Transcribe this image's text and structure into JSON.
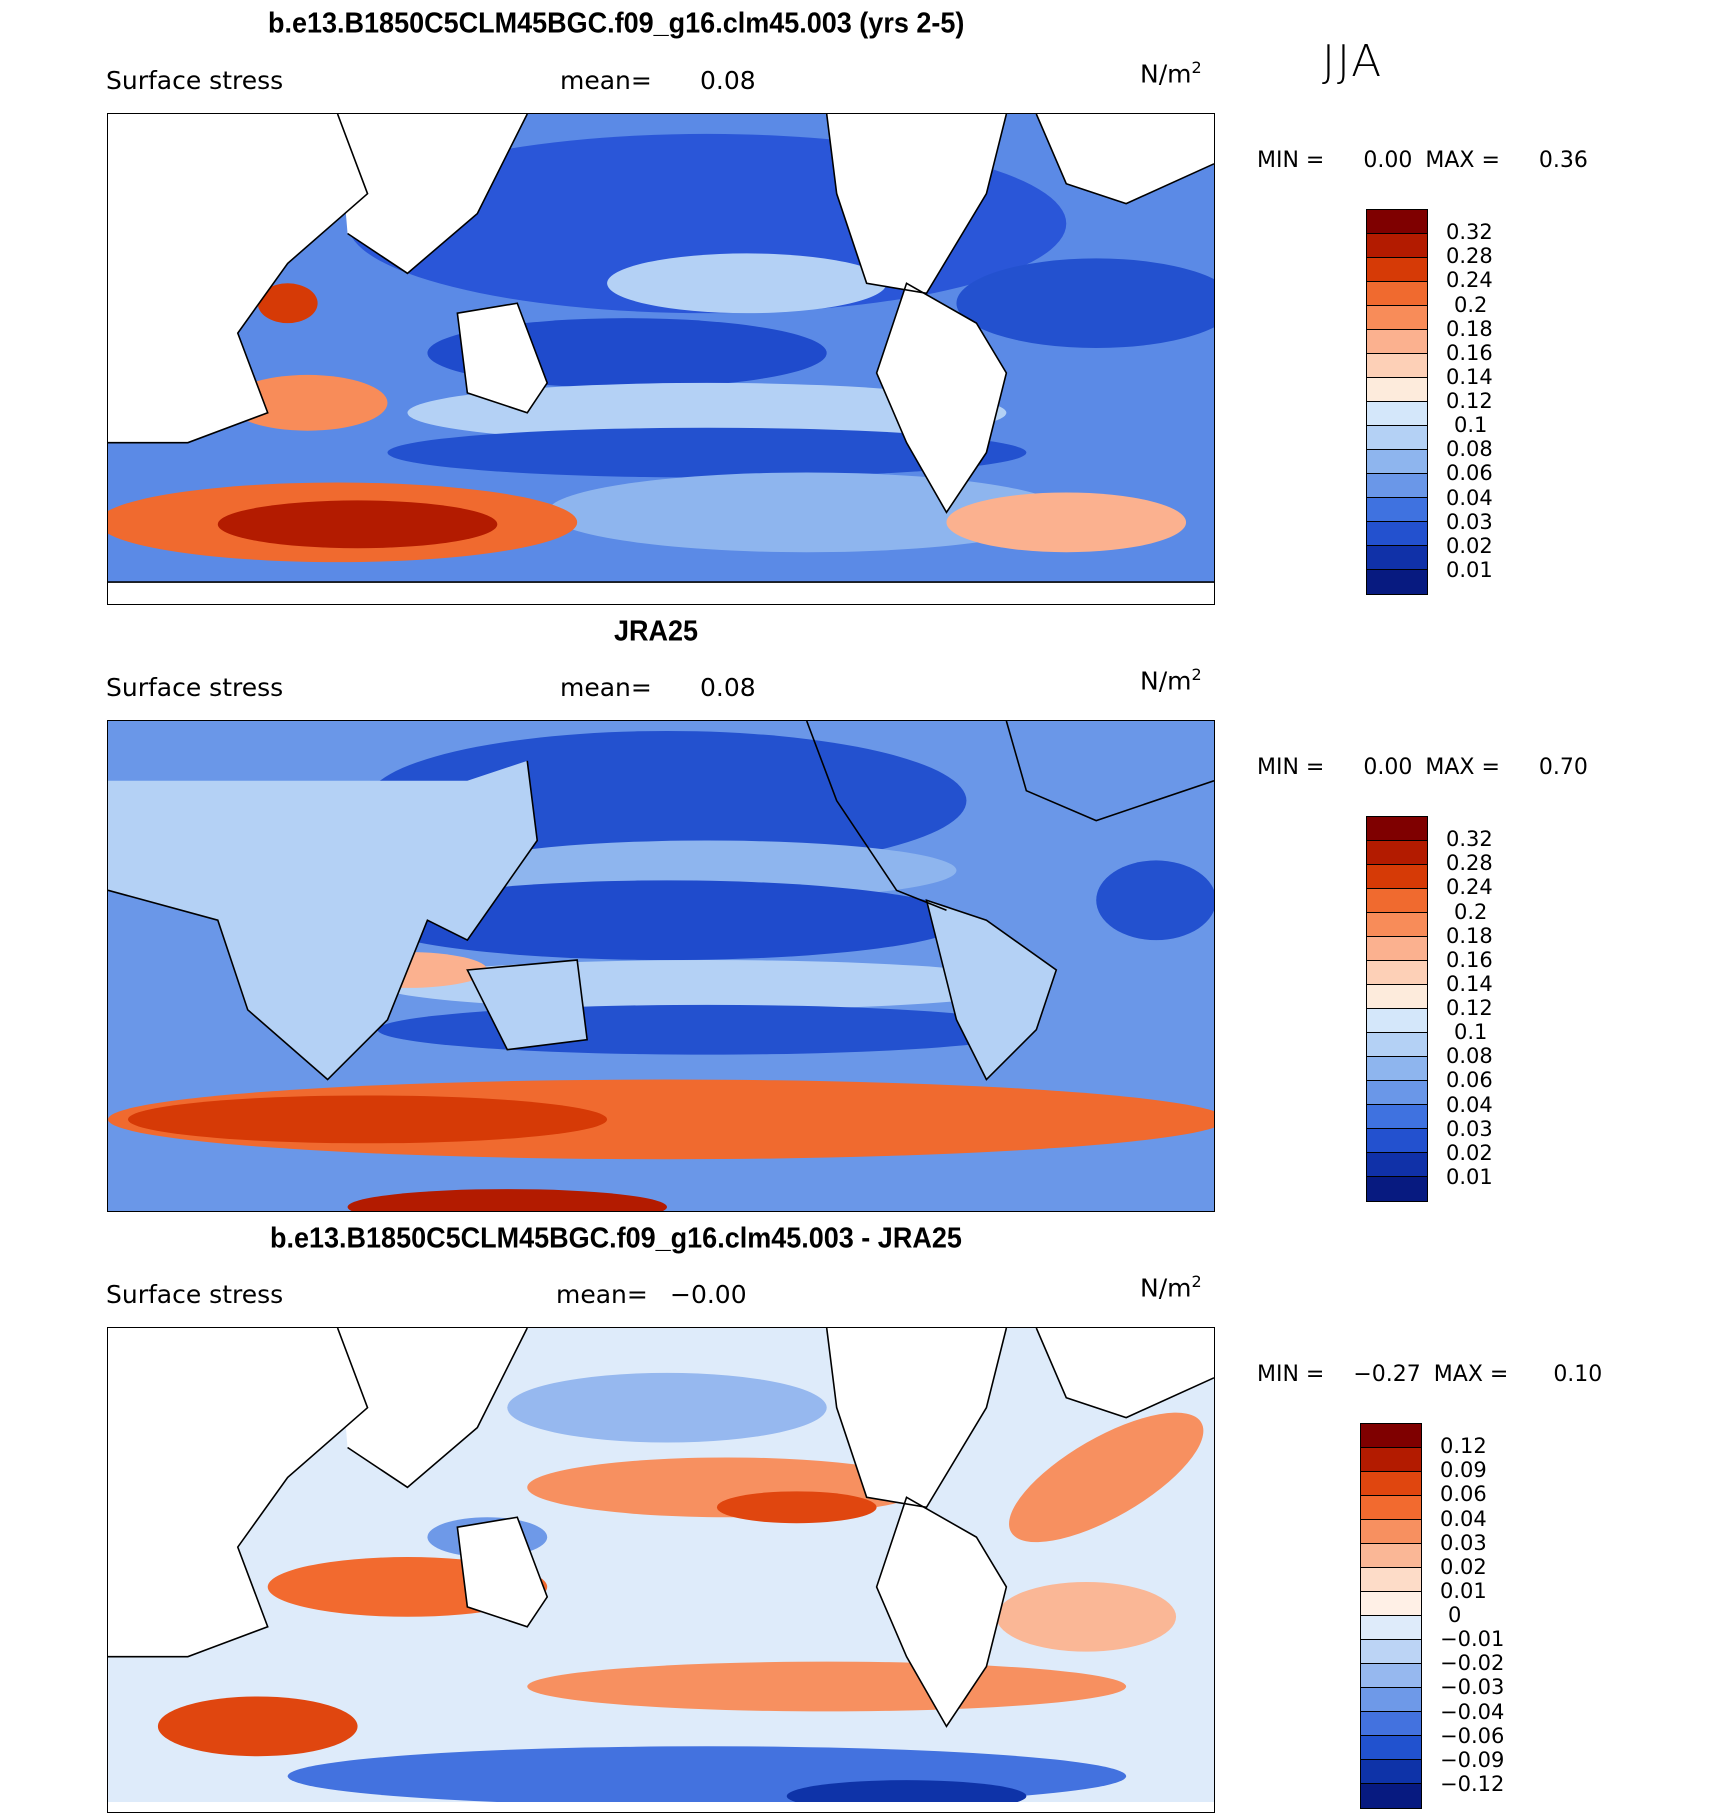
{
  "season": "JJA",
  "panels": [
    {
      "title": "b.e13.B1850C5CLM45BGC.f09_g16.clm45.003 (yrs 2-5)",
      "variable": "Surface stress",
      "mean_label": "mean=",
      "mean_value": "0.08",
      "units_base": "N/m",
      "units_exp": "2",
      "min_label": "MIN =",
      "min_value": "0.00",
      "max_label": "MAX =",
      "max_value": "0.36",
      "colorbar_levels": [
        "0.32",
        "0.28",
        "0.24",
        "0.2",
        "0.18",
        "0.16",
        "0.14",
        "0.12",
        "0.1",
        "0.08",
        "0.06",
        "0.04",
        "0.03",
        "0.02",
        "0.01"
      ]
    },
    {
      "title": "JRA25",
      "variable": "Surface stress",
      "mean_label": "mean=",
      "mean_value": "0.08",
      "units_base": "N/m",
      "units_exp": "2",
      "min_label": "MIN =",
      "min_value": "0.00",
      "max_label": "MAX =",
      "max_value": "0.70",
      "colorbar_levels": [
        "0.32",
        "0.28",
        "0.24",
        "0.2",
        "0.18",
        "0.16",
        "0.14",
        "0.12",
        "0.1",
        "0.08",
        "0.06",
        "0.04",
        "0.03",
        "0.02",
        "0.01"
      ]
    },
    {
      "title": "b.e13.B1850C5CLM45BGC.f09_g16.clm45.003 - JRA25",
      "variable": "Surface stress",
      "mean_label": "mean=",
      "mean_value": "−0.00",
      "units_base": "N/m",
      "units_exp": "2",
      "min_label": "MIN =",
      "min_value": "−0.27",
      "max_label": "MAX =",
      "max_value": "0.10",
      "colorbar_levels": [
        "0.12",
        "0.09",
        "0.06",
        "0.04",
        "0.03",
        "0.02",
        "0.01",
        "0",
        "−0.01",
        "−0.02",
        "−0.03",
        "−0.04",
        "−0.06",
        "−0.09",
        "−0.12"
      ]
    }
  ],
  "colors": {
    "seq": [
      "#7f0000",
      "#b31b00",
      "#d63a06",
      "#f06a2f",
      "#f88c59",
      "#fbb18f",
      "#fdd0b7",
      "#fdebdc",
      "#d4e7fa",
      "#b4d1f5",
      "#8eb5ee",
      "#6a97e8",
      "#3f72e0",
      "#2351cf",
      "#1031a8",
      "#071a80"
    ],
    "diff": [
      "#7f0000",
      "#b31b00",
      "#e0460f",
      "#f26a2f",
      "#f79060",
      "#fab796",
      "#fddcc8",
      "#fff0e6",
      "#deebfa",
      "#bcd4f5",
      "#96b8ef",
      "#6e99e8",
      "#4372df",
      "#2152cf",
      "#0e33a8",
      "#071a80"
    ]
  }
}
